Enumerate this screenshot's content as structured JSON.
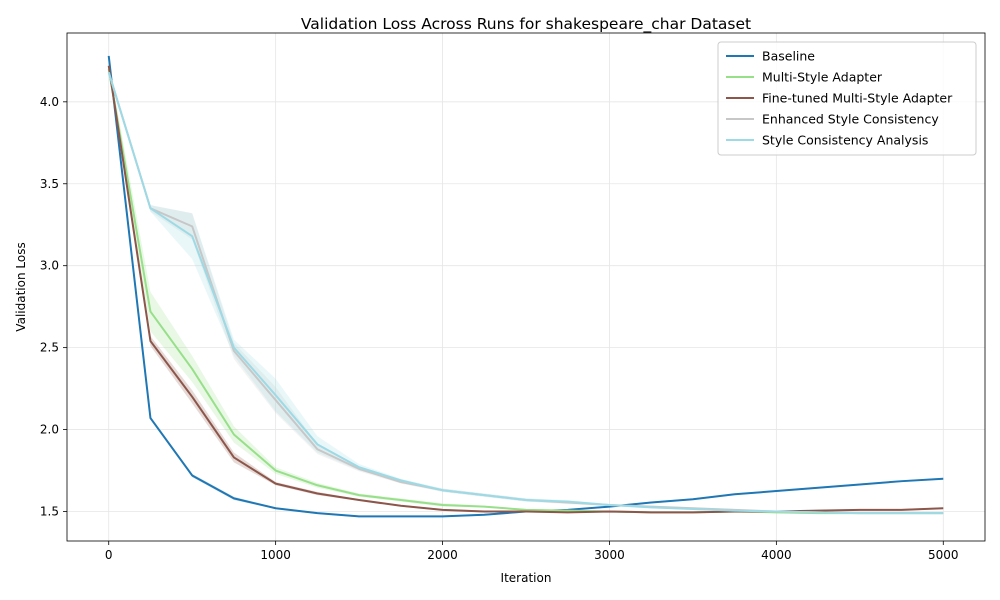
{
  "chart_data": {
    "type": "line",
    "title": "Validation Loss Across Runs for shakespeare_char Dataset",
    "xlabel": "Iteration",
    "ylabel": "Validation Loss",
    "xlim": [
      -250,
      5250
    ],
    "ylim": [
      1.32,
      4.42
    ],
    "xticks": [
      0,
      1000,
      2000,
      3000,
      4000,
      5000
    ],
    "yticks": [
      1.5,
      2.0,
      2.5,
      3.0,
      3.5,
      4.0
    ],
    "ytick_labels": [
      "1.5",
      "2.0",
      "2.5",
      "3.0",
      "3.5",
      "4.0"
    ],
    "grid": true,
    "legend_position": "top-right",
    "x": [
      0,
      250,
      500,
      750,
      1000,
      1250,
      1500,
      1750,
      2000,
      2250,
      2500,
      2750,
      3000,
      3250,
      3500,
      3750,
      4000,
      4250,
      4500,
      4750,
      5000
    ],
    "series": [
      {
        "name": "Baseline",
        "color": "#1f77b4",
        "values": [
          4.28,
          2.07,
          1.72,
          1.58,
          1.52,
          1.49,
          1.47,
          1.47,
          1.47,
          1.48,
          1.5,
          1.51,
          1.53,
          1.555,
          1.575,
          1.605,
          1.625,
          1.645,
          1.665,
          1.685,
          1.7
        ],
        "band": [
          0.01,
          0.01,
          0.01,
          0.01,
          0.005,
          0.005,
          0.005,
          0.005,
          0.005,
          0.005,
          0.005,
          0.005,
          0.005,
          0.005,
          0.005,
          0.005,
          0.005,
          0.005,
          0.005,
          0.005,
          0.005
        ]
      },
      {
        "name": "Multi-Style Adapter",
        "color": "#98df8a",
        "values": [
          4.2,
          2.72,
          2.37,
          1.97,
          1.75,
          1.66,
          1.6,
          1.57,
          1.54,
          1.53,
          1.51,
          1.505,
          1.5,
          1.495,
          1.495,
          1.5,
          1.495,
          1.49,
          1.49,
          1.49,
          1.49
        ],
        "band": [
          0.04,
          0.12,
          0.08,
          0.05,
          0.02,
          0.015,
          0.01,
          0.01,
          0.01,
          0.005,
          0.005,
          0.005,
          0.005,
          0.005,
          0.005,
          0.005,
          0.005,
          0.005,
          0.005,
          0.005,
          0.005
        ]
      },
      {
        "name": "Fine-tuned Multi-Style Adapter",
        "color": "#8c564b",
        "values": [
          4.22,
          2.54,
          2.2,
          1.83,
          1.67,
          1.61,
          1.57,
          1.535,
          1.51,
          1.5,
          1.5,
          1.495,
          1.5,
          1.495,
          1.495,
          1.5,
          1.5,
          1.505,
          1.51,
          1.51,
          1.52
        ],
        "band": [
          0.03,
          0.03,
          0.04,
          0.03,
          0.01,
          0.01,
          0.005,
          0.005,
          0.005,
          0.005,
          0.005,
          0.005,
          0.005,
          0.005,
          0.005,
          0.005,
          0.005,
          0.005,
          0.005,
          0.005,
          0.005
        ]
      },
      {
        "name": "Enhanced Style Consistency",
        "color": "#c7c7c7",
        "values": [
          4.18,
          3.35,
          3.24,
          2.48,
          2.18,
          1.88,
          1.76,
          1.68,
          1.63,
          1.6,
          1.57,
          1.555,
          1.54,
          1.53,
          1.52,
          1.51,
          1.5,
          1.495,
          1.49,
          1.49,
          1.49
        ],
        "band": [
          0.02,
          0.02,
          0.08,
          0.05,
          0.08,
          0.03,
          0.015,
          0.01,
          0.01,
          0.01,
          0.01,
          0.01,
          0.005,
          0.005,
          0.005,
          0.005,
          0.005,
          0.005,
          0.005,
          0.005,
          0.005
        ]
      },
      {
        "name": "Style Consistency Analysis",
        "color": "#9edae5",
        "values": [
          4.18,
          3.35,
          3.18,
          2.5,
          2.21,
          1.91,
          1.77,
          1.69,
          1.63,
          1.6,
          1.57,
          1.56,
          1.54,
          1.525,
          1.515,
          1.505,
          1.5,
          1.495,
          1.49,
          1.49,
          1.49
        ],
        "band": [
          0.02,
          0.02,
          0.14,
          0.05,
          0.1,
          0.05,
          0.02,
          0.01,
          0.01,
          0.01,
          0.01,
          0.01,
          0.005,
          0.005,
          0.005,
          0.005,
          0.005,
          0.005,
          0.005,
          0.005,
          0.005
        ]
      }
    ]
  }
}
